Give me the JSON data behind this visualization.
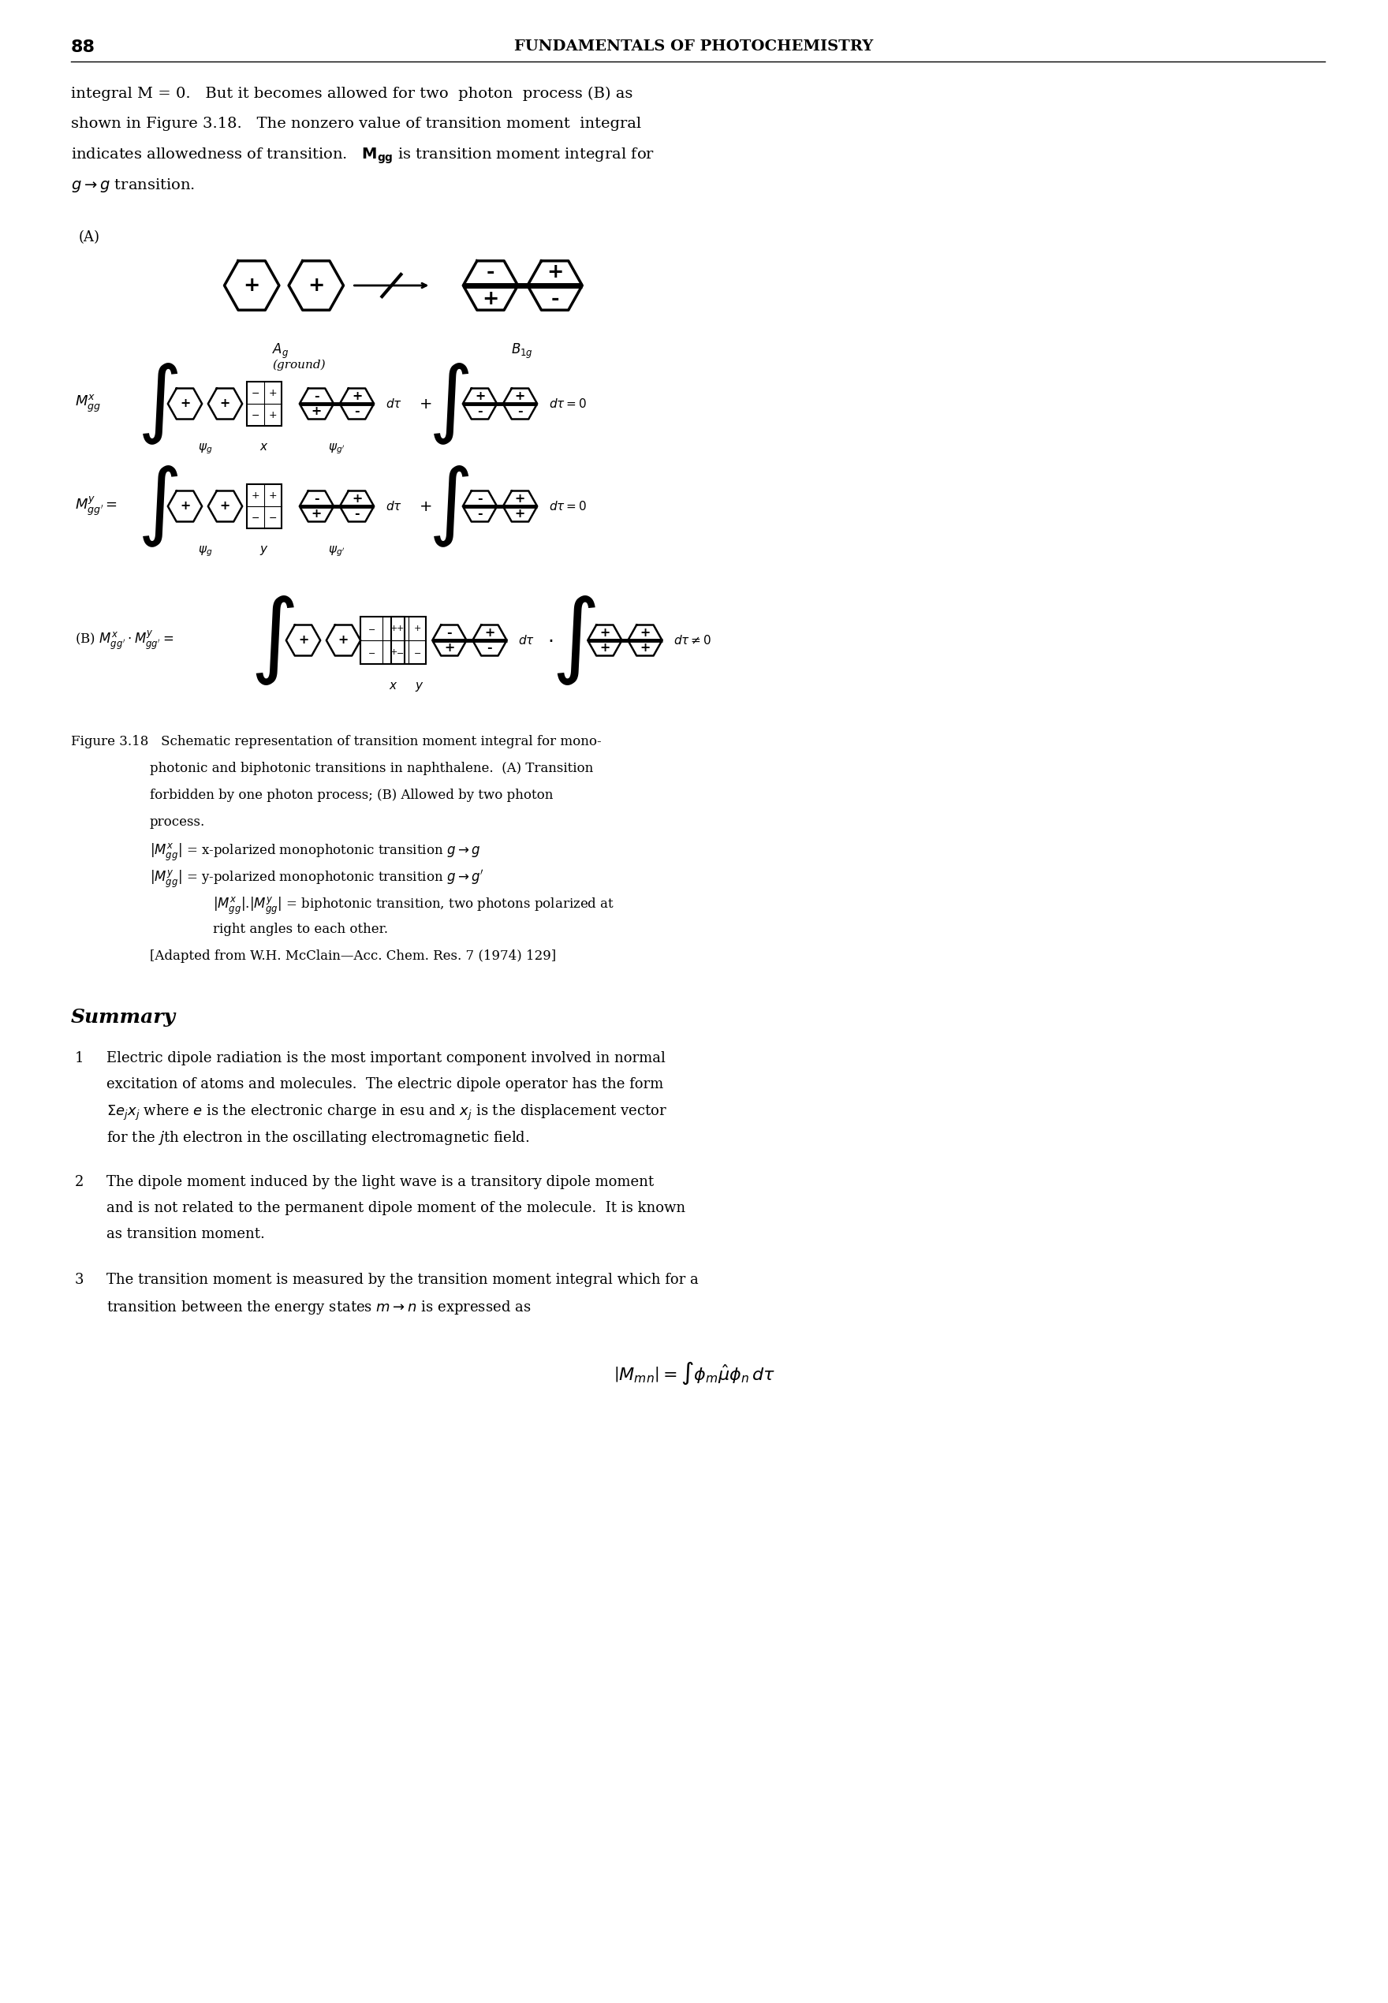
{
  "page_number": "88",
  "header_title": "FUNDAMENTALS OF PHOTOCHEMISTRY",
  "bg_color": "#ffffff",
  "text_color": "#000000",
  "intro_text": [
    "integral M = 0.  But it becomes allowed for two  photon  process (B) as",
    "shown in Figure 3.18.  The nonzero value of transition moment  integral",
    "indicates allowedness of transition.  Mₚₚ is transition moment integral for",
    "g → g transition."
  ],
  "figure_caption": [
    "Figure 3.18  Schematic representation of transition moment integral for mono-",
    "photonic and biphotonic transitions in naphthalene.  (A) Transition",
    "forbidden by one photon process;’ (B) Allowed by two photon",
    "process.",
    "|Mæₚₚ| = x-polarized monophotonic transition g → g",
    "|M¸ₚₚ| = y-polarized monophotonic transition g → g’",
    "|Mæₚₚ|.|M¸ₚₚ| = biphotonic transition, two photons polarized at",
    "right angles to each other.",
    "[Adapted from W.H. McClain—Acc. Chem. Res. 7 (1974) 129]"
  ],
  "summary_title": "Summary",
  "summary_items": [
    "Electric dipole radiation is the most important component involved in normal excitation of atoms and molecules.  The electric dipole operator has the form Σeⱼxj where e is the electronic charge in esu and xj is the displacement vector for the jth electron in the oscillating electromagnetic field.",
    "The dipole moment induced by the light wave is a transitory dipole moment and is not related to the permanent dipole moment of the molecule.  It is known as transition moment.",
    "The transition moment is measured by the transition moment integral which for a transition between the energy states m → n is expressed as"
  ],
  "final_equation": "| Mₘₙ | = ∫ φₘ μ̂ φₙ dτ"
}
